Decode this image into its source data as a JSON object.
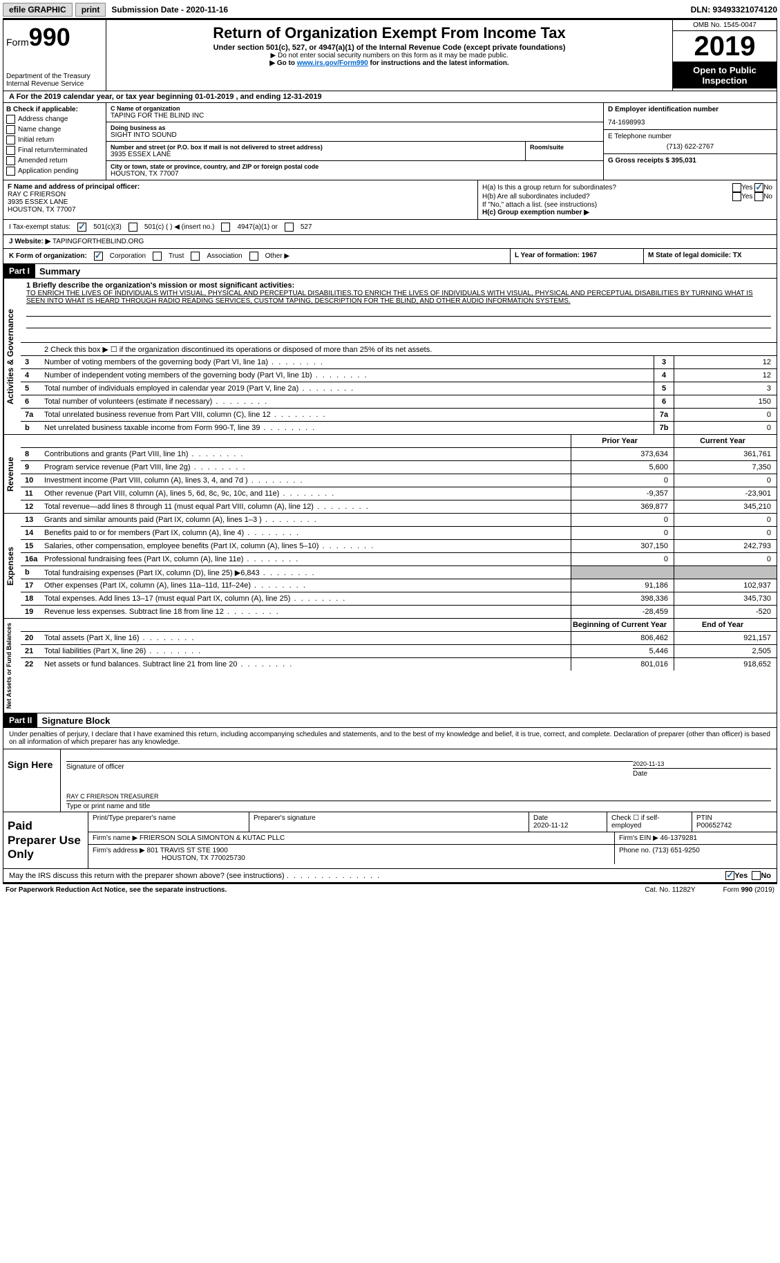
{
  "topbar": {
    "efile": "efile GRAPHIC",
    "print": "print",
    "sub_date_label": "Submission Date - 2020-11-16",
    "dln": "DLN: 93493321074120"
  },
  "header": {
    "form_prefix": "Form",
    "form_num": "990",
    "dept": "Department of the Treasury\nInternal Revenue Service",
    "title": "Return of Organization Exempt From Income Tax",
    "sub1": "Under section 501(c), 527, or 4947(a)(1) of the Internal Revenue Code (except private foundations)",
    "sub2": "▶ Do not enter social security numbers on this form as it may be made public.",
    "sub3_pre": "▶ Go to ",
    "sub3_link": "www.irs.gov/Form990",
    "sub3_post": " for instructions and the latest information.",
    "omb": "OMB No. 1545-0047",
    "year": "2019",
    "open": "Open to Public Inspection"
  },
  "row_a": "A For the 2019 calendar year, or tax year beginning 01-01-2019    , and ending 12-31-2019",
  "col_b": {
    "title": "B Check if applicable:",
    "items": [
      "Address change",
      "Name change",
      "Initial return",
      "Final return/terminated",
      "Amended return",
      "Application pending"
    ]
  },
  "col_c": {
    "c_label": "C Name of organization",
    "c_name": "TAPING FOR THE BLIND INC",
    "dba_label": "Doing business as",
    "dba": "SIGHT INTO SOUND",
    "addr_label": "Number and street (or P.O. box if mail is not delivered to street address)",
    "room_label": "Room/suite",
    "addr": "3935 ESSEX LANE",
    "city_label": "City or town, state or province, country, and ZIP or foreign postal code",
    "city": "HOUSTON, TX  77007"
  },
  "col_d": {
    "d_label": "D Employer identification number",
    "d_val": "74-1698993",
    "e_label": "E Telephone number",
    "e_val": "(713) 622-2767",
    "g_label": "G Gross receipts $ 395,031"
  },
  "row_f": {
    "f_label": "F Name and address of principal officer:",
    "f_name": "RAY C FRIERSON",
    "f_addr1": "3935 ESSEX LANE",
    "f_addr2": "HOUSTON, TX  77007",
    "ha": "H(a)  Is this a group return for subordinates?",
    "hb": "H(b)  Are all subordinates included?",
    "hb_note": "If \"No,\" attach a list. (see instructions)",
    "hc": "H(c)  Group exemption number ▶",
    "yes": "Yes",
    "no": "No"
  },
  "tax_status": {
    "i": "I Tax-exempt status:",
    "opts": [
      "501(c)(3)",
      "501(c) (  ) ◀ (insert no.)",
      "4947(a)(1) or",
      "527"
    ]
  },
  "row_j": {
    "label": "J Website: ▶",
    "val": " TAPINGFORTHEBLIND.ORG"
  },
  "row_k": {
    "label": "K Form of organization:",
    "opts": [
      "Corporation",
      "Trust",
      "Association",
      "Other ▶"
    ],
    "l": "L Year of formation: 1967",
    "m": "M State of legal domicile: TX"
  },
  "part1": {
    "header": "Part I",
    "title": "Summary"
  },
  "mission": {
    "line1_label": "1  Briefly describe the organization's mission or most significant activities:",
    "text": "TO ENRICH THE LIVES OF INDIVIDUALS WITH VISUAL, PHYSICAL AND PERCEPTUAL DISABILITIES.TO ENRICH THE LIVES OF INDIVIDUALS WITH VISUAL, PHYSICAL AND PERCEPTUAL DISABILITIES BY TURNING WHAT IS SEEN INTO WHAT IS HEARD THROUGH RADIO READING SERVICES, CUSTOM TAPING, DESCRIPTION FOR THE BLIND, AND OTHER AUDIO INFORMATION SYSTEMS.",
    "line2": "2   Check this box ▶ ☐  if the organization discontinued its operations or disposed of more than 25% of its net assets."
  },
  "gov_lines": [
    {
      "n": "3",
      "d": "Number of voting members of the governing body (Part VI, line 1a)",
      "box": "3",
      "v": "12"
    },
    {
      "n": "4",
      "d": "Number of independent voting members of the governing body (Part VI, line 1b)",
      "box": "4",
      "v": "12"
    },
    {
      "n": "5",
      "d": "Total number of individuals employed in calendar year 2019 (Part V, line 2a)",
      "box": "5",
      "v": "3"
    },
    {
      "n": "6",
      "d": "Total number of volunteers (estimate if necessary)",
      "box": "6",
      "v": "150"
    },
    {
      "n": "7a",
      "d": "Total unrelated business revenue from Part VIII, column (C), line 12",
      "box": "7a",
      "v": "0"
    },
    {
      "n": "b",
      "d": "Net unrelated business taxable income from Form 990-T, line 39",
      "box": "7b",
      "v": "0"
    }
  ],
  "revenue_header": {
    "prior": "Prior Year",
    "current": "Current Year"
  },
  "revenue_lines": [
    {
      "n": "8",
      "d": "Contributions and grants (Part VIII, line 1h)",
      "p": "373,634",
      "c": "361,761"
    },
    {
      "n": "9",
      "d": "Program service revenue (Part VIII, line 2g)",
      "p": "5,600",
      "c": "7,350"
    },
    {
      "n": "10",
      "d": "Investment income (Part VIII, column (A), lines 3, 4, and 7d )",
      "p": "0",
      "c": "0"
    },
    {
      "n": "11",
      "d": "Other revenue (Part VIII, column (A), lines 5, 6d, 8c, 9c, 10c, and 11e)",
      "p": "-9,357",
      "c": "-23,901"
    },
    {
      "n": "12",
      "d": "Total revenue—add lines 8 through 11 (must equal Part VIII, column (A), line 12)",
      "p": "369,877",
      "c": "345,210"
    }
  ],
  "expense_lines": [
    {
      "n": "13",
      "d": "Grants and similar amounts paid (Part IX, column (A), lines 1–3 )",
      "p": "0",
      "c": "0"
    },
    {
      "n": "14",
      "d": "Benefits paid to or for members (Part IX, column (A), line 4)",
      "p": "0",
      "c": "0"
    },
    {
      "n": "15",
      "d": "Salaries, other compensation, employee benefits (Part IX, column (A), lines 5–10)",
      "p": "307,150",
      "c": "242,793"
    },
    {
      "n": "16a",
      "d": "Professional fundraising fees (Part IX, column (A), line 11e)",
      "p": "0",
      "c": "0"
    },
    {
      "n": "b",
      "d": "Total fundraising expenses (Part IX, column (D), line 25) ▶6,843",
      "p": "GREY",
      "c": "GREY"
    },
    {
      "n": "17",
      "d": "Other expenses (Part IX, column (A), lines 11a–11d, 11f–24e)",
      "p": "91,186",
      "c": "102,937"
    },
    {
      "n": "18",
      "d": "Total expenses. Add lines 13–17 (must equal Part IX, column (A), line 25)",
      "p": "398,336",
      "c": "345,730"
    },
    {
      "n": "19",
      "d": "Revenue less expenses. Subtract line 18 from line 12",
      "p": "-28,459",
      "c": "-520"
    }
  ],
  "netassets_header": {
    "begin": "Beginning of Current Year",
    "end": "End of Year"
  },
  "netassets_lines": [
    {
      "n": "20",
      "d": "Total assets (Part X, line 16)",
      "p": "806,462",
      "c": "921,157"
    },
    {
      "n": "21",
      "d": "Total liabilities (Part X, line 26)",
      "p": "5,446",
      "c": "2,505"
    },
    {
      "n": "22",
      "d": "Net assets or fund balances. Subtract line 21 from line 20",
      "p": "801,016",
      "c": "918,652"
    }
  ],
  "side_labels": {
    "gov": "Activities & Governance",
    "rev": "Revenue",
    "exp": "Expenses",
    "net": "Net Assets or Fund Balances"
  },
  "part2": {
    "header": "Part II",
    "title": "Signature Block",
    "perjury": "Under penalties of perjury, I declare that I have examined this return, including accompanying schedules and statements, and to the best of my knowledge and belief, it is true, correct, and complete. Declaration of preparer (other than officer) is based on all information of which preparer has any knowledge."
  },
  "sign": {
    "label": "Sign Here",
    "sig_officer": "Signature of officer",
    "date_label": "Date",
    "date_val": "2020-11-13",
    "name": "RAY C FRIERSON  TREASURER",
    "name_label": "Type or print name and title"
  },
  "preparer": {
    "label": "Paid Preparer Use Only",
    "h1": "Print/Type preparer's name",
    "h2": "Preparer's signature",
    "h3_label": "Date",
    "h3_val": "2020-11-12",
    "h4": "Check ☐ if self-employed",
    "h5_label": "PTIN",
    "h5_val": "P00652742",
    "firm_name_label": "Firm's name    ▶",
    "firm_name": "FRIERSON SOLA SIMONTON & KUTAC PLLC",
    "firm_ein_label": "Firm's EIN ▶",
    "firm_ein": "46-1379281",
    "firm_addr_label": "Firm's address ▶",
    "firm_addr1": "801 TRAVIS ST STE 1900",
    "firm_addr2": "HOUSTON, TX  770025730",
    "phone_label": "Phone no.",
    "phone": "(713) 651-9250"
  },
  "irs_discuss": {
    "q": "May the IRS discuss this return with the preparer shown above? (see instructions)",
    "yes": "Yes",
    "no": "No"
  },
  "footer": {
    "left": "For Paperwork Reduction Act Notice, see the separate instructions.",
    "mid": "Cat. No. 11282Y",
    "right": "Form 990 (2019)"
  }
}
